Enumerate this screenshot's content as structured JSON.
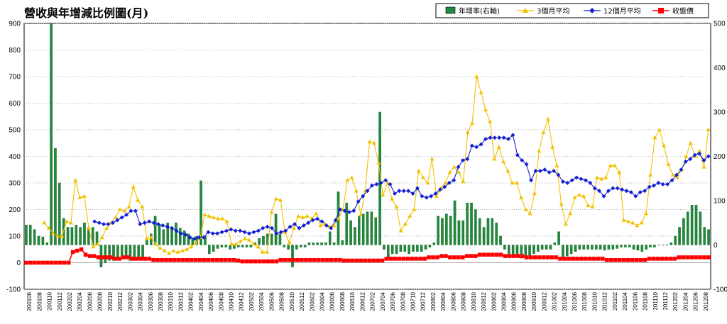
{
  "chart_data": {
    "type": "bar+line",
    "title": "營收與年增減比例圖(月)",
    "y_left": {
      "min": -100,
      "max": 900,
      "ticks": [
        -100,
        0,
        100,
        200,
        300,
        400,
        500,
        600,
        700,
        800,
        900
      ]
    },
    "y_right": {
      "min": -100,
      "max": 500,
      "ticks": [
        -100,
        0,
        100,
        200,
        300,
        400,
        500
      ]
    },
    "grid": true,
    "legend": {
      "position": "top-right"
    },
    "x_tick_labels": [
      "200106",
      "200108",
      "200110",
      "200112",
      "200202",
      "200204",
      "200206",
      "200208",
      "200210",
      "200212",
      "200302",
      "200304",
      "200306",
      "200308",
      "200310",
      "200312",
      "200402",
      "200404",
      "200406",
      "200408",
      "200410",
      "200412",
      "200502",
      "200504",
      "200506",
      "200508",
      "200510",
      "200512",
      "200602",
      "200604",
      "200606",
      "200608",
      "200610",
      "200612",
      "200702",
      "200704",
      "200706",
      "200708",
      "200710",
      "200712",
      "200802",
      "200804",
      "200806",
      "200808",
      "200810",
      "200812",
      "200902",
      "200904",
      "200906",
      "200908",
      "200910",
      "200912",
      "201002",
      "201004",
      "201006",
      "201008",
      "201010",
      "201012",
      "201102",
      "201104",
      "201106",
      "201108",
      "201110",
      "201112",
      "201202",
      "201204",
      "201206",
      "201208"
    ],
    "series": [
      {
        "name": "年增率(右軸)",
        "kind": "bar",
        "axis": "right",
        "color": "#1f8a3a",
        "values": [
          45,
          45,
          35,
          20,
          18,
          5,
          500,
          218,
          140,
          60,
          40,
          40,
          45,
          40,
          50,
          40,
          40,
          30,
          -50,
          -40,
          -35,
          -35,
          -32,
          -30,
          -30,
          -35,
          -35,
          -32,
          -30,
          10,
          25,
          65,
          45,
          35,
          50,
          40,
          50,
          38,
          32,
          25,
          15,
          20,
          145,
          20,
          -20,
          -15,
          -8,
          -5,
          -5,
          -10,
          -8,
          -5,
          -5,
          -5,
          -5,
          5,
          15,
          20,
          25,
          25,
          70,
          25,
          -5,
          -10,
          -50,
          -10,
          -5,
          -5,
          5,
          5,
          5,
          5,
          5,
          30,
          5,
          120,
          10,
          95,
          55,
          40,
          65,
          70,
          75,
          75,
          62,
          300,
          -10,
          -30,
          -20,
          -20,
          -15,
          -15,
          -20,
          -15,
          -15,
          -15,
          -10,
          -5,
          5,
          65,
          60,
          70,
          65,
          100,
          55,
          55,
          95,
          95,
          80,
          60,
          40,
          60,
          60,
          50,
          20,
          -10,
          -20,
          -25,
          -25,
          -30,
          -28,
          -25,
          -20,
          -15,
          -10,
          -10,
          -10,
          5,
          30,
          -30,
          -25,
          -20,
          -15,
          -10,
          -10,
          -10,
          -10,
          -10,
          -10,
          -12,
          -10,
          -10,
          -8,
          -5,
          -5,
          -5,
          -10,
          -12,
          -15,
          -10,
          -5,
          -5,
          0,
          0,
          0,
          5,
          20,
          40,
          60,
          75,
          90,
          90,
          75,
          40,
          35
        ]
      },
      {
        "name": "3個月平均",
        "kind": "line",
        "axis": "left",
        "color": "#f2c100",
        "values": [
          null,
          null,
          null,
          null,
          150,
          130,
          110,
          100,
          100,
          155,
          150,
          310,
          245,
          250,
          130,
          60,
          70,
          95,
          130,
          150,
          170,
          200,
          195,
          210,
          285,
          235,
          210,
          90,
          95,
          70,
          55,
          45,
          35,
          45,
          40,
          45,
          50,
          60,
          75,
          95,
          180,
          175,
          170,
          165,
          165,
          155,
          70,
          70,
          80,
          90,
          85,
          70,
          60,
          40,
          40,
          190,
          240,
          235,
          115,
          75,
          130,
          175,
          170,
          175,
          165,
          185,
          140,
          145,
          135,
          140,
          165,
          200,
          310,
          320,
          270,
          180,
          270,
          455,
          450,
          375,
          255,
          300,
          240,
          210,
          120,
          145,
          175,
          200,
          345,
          320,
          300,
          390,
          250,
          280,
          300,
          340,
          360,
          340,
          305,
          490,
          525,
          700,
          640,
          575,
          530,
          390,
          435,
          380,
          345,
          300,
          300,
          245,
          200,
          185,
          260,
          420,
          490,
          540,
          435,
          365,
          220,
          145,
          185,
          245,
          255,
          250,
          215,
          210,
          320,
          315,
          320,
          365,
          365,
          340,
          160,
          155,
          150,
          140,
          150,
          185,
          330,
          470,
          500,
          440,
          370,
          330,
          320,
          350,
          400,
          450,
          400,
          420,
          360,
          500
        ]
      },
      {
        "name": "12個月平均",
        "kind": "line",
        "axis": "left",
        "color": "#1420d4",
        "values": [
          null,
          null,
          null,
          null,
          null,
          null,
          null,
          null,
          null,
          null,
          null,
          null,
          null,
          null,
          null,
          155,
          150,
          145,
          145,
          150,
          160,
          170,
          180,
          195,
          195,
          145,
          150,
          155,
          150,
          145,
          140,
          135,
          130,
          120,
          110,
          105,
          95,
          90,
          95,
          95,
          115,
          110,
          110,
          115,
          120,
          125,
          120,
          120,
          115,
          110,
          115,
          120,
          130,
          135,
          130,
          110,
          115,
          120,
          135,
          145,
          130,
          140,
          150,
          160,
          165,
          155,
          140,
          130,
          160,
          200,
          195,
          190,
          195,
          230,
          250,
          270,
          290,
          295,
          300,
          310,
          295,
          260,
          270,
          270,
          270,
          260,
          280,
          250,
          245,
          250,
          260,
          275,
          285,
          300,
          310,
          360,
          385,
          390,
          440,
          435,
          445,
          465,
          470,
          470,
          470,
          470,
          465,
          480,
          405,
          385,
          370,
          310,
          345,
          345,
          350,
          340,
          345,
          330,
          305,
          300,
          310,
          320,
          315,
          310,
          300,
          280,
          270,
          250,
          270,
          280,
          280,
          275,
          270,
          265,
          250,
          265,
          270,
          285,
          290,
          300,
          295,
          295,
          310,
          330,
          350,
          380,
          390,
          405,
          410,
          385,
          400
        ]
      },
      {
        "name": "收盤價",
        "kind": "line",
        "axis": "left",
        "color": "#ff0000",
        "values": [
          0,
          0,
          0,
          0,
          0,
          0,
          0,
          0,
          0,
          0,
          0,
          40,
          45,
          50,
          30,
          25,
          25,
          20,
          20,
          20,
          20,
          15,
          15,
          20,
          20,
          15,
          15,
          15,
          15,
          15,
          10,
          10,
          10,
          10,
          10,
          10,
          10,
          10,
          10,
          10,
          10,
          10,
          10,
          10,
          10,
          10,
          10,
          10,
          10,
          10,
          8,
          5,
          5,
          5,
          5,
          5,
          5,
          5,
          5,
          5,
          10,
          10,
          10,
          10,
          10,
          10,
          10,
          10,
          10,
          10,
          10,
          10,
          10,
          10,
          10,
          8,
          8,
          8,
          8,
          8,
          8,
          8,
          8,
          8,
          8,
          15,
          15,
          15,
          15,
          15,
          15,
          15,
          15,
          15,
          15,
          20,
          20,
          20,
          25,
          25,
          20,
          20,
          20,
          20,
          25,
          25,
          25,
          30,
          30,
          30,
          30,
          30,
          30,
          25,
          25,
          25,
          25,
          25,
          20,
          20,
          20,
          20,
          20,
          20,
          20,
          20,
          15,
          15,
          15,
          15,
          15,
          15,
          15,
          15,
          15,
          15,
          15,
          10,
          10,
          10,
          10,
          10,
          10,
          10,
          10,
          10,
          10,
          15,
          15,
          15,
          15,
          15,
          15,
          15,
          20,
          20,
          20,
          20,
          20,
          20,
          20,
          20
        ]
      }
    ]
  }
}
